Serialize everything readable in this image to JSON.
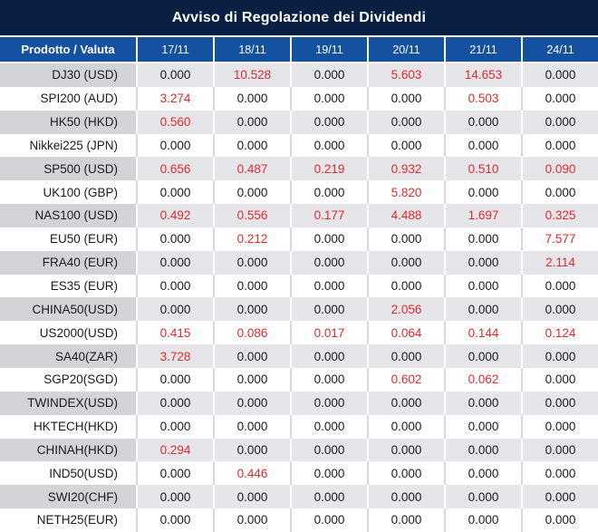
{
  "title": "Avviso di Regolazione dei Dividendi",
  "columns": [
    "Prodotto / Valuta",
    "17/11",
    "18/11",
    "19/11",
    "20/11",
    "21/11",
    "24/11"
  ],
  "rows": [
    {
      "product": "DJ30 (USD)",
      "values": [
        "0.000",
        "10.528",
        "0.000",
        "5.603",
        "14.653",
        "0.000"
      ],
      "red": [
        false,
        true,
        false,
        true,
        true,
        false
      ]
    },
    {
      "product": "SPI200 (AUD)",
      "values": [
        "3.274",
        "0.000",
        "0.000",
        "0.000",
        "0.503",
        "0.000"
      ],
      "red": [
        true,
        false,
        false,
        false,
        true,
        false
      ]
    },
    {
      "product": "HK50 (HKD)",
      "values": [
        "0.560",
        "0.000",
        "0.000",
        "0.000",
        "0.000",
        "0.000"
      ],
      "red": [
        true,
        false,
        false,
        false,
        false,
        false
      ]
    },
    {
      "product": "Nikkei225 (JPN)",
      "values": [
        "0.000",
        "0.000",
        "0.000",
        "0.000",
        "0.000",
        "0.000"
      ],
      "red": [
        false,
        false,
        false,
        false,
        false,
        false
      ]
    },
    {
      "product": "SP500 (USD)",
      "values": [
        "0.656",
        "0.487",
        "0.219",
        "0.932",
        "0.510",
        "0.090"
      ],
      "red": [
        true,
        true,
        true,
        true,
        true,
        true
      ]
    },
    {
      "product": "UK100 (GBP)",
      "values": [
        "0.000",
        "0.000",
        "0.000",
        "5.820",
        "0.000",
        "0.000"
      ],
      "red": [
        false,
        false,
        false,
        true,
        false,
        false
      ]
    },
    {
      "product": "NAS100 (USD)",
      "values": [
        "0.492",
        "0.556",
        "0.177",
        "4.488",
        "1.697",
        "0.325"
      ],
      "red": [
        true,
        true,
        true,
        true,
        true,
        true
      ]
    },
    {
      "product": "EU50 (EUR)",
      "values": [
        "0.000",
        "0.212",
        "0.000",
        "0.000",
        "0.000",
        "7.577"
      ],
      "red": [
        false,
        true,
        false,
        false,
        false,
        true
      ]
    },
    {
      "product": "FRA40 (EUR)",
      "values": [
        "0.000",
        "0.000",
        "0.000",
        "0.000",
        "0.000",
        "2.114"
      ],
      "red": [
        false,
        false,
        false,
        false,
        false,
        true
      ]
    },
    {
      "product": "ES35 (EUR)",
      "values": [
        "0.000",
        "0.000",
        "0.000",
        "0.000",
        "0.000",
        "0.000"
      ],
      "red": [
        false,
        false,
        false,
        false,
        false,
        false
      ]
    },
    {
      "product": "CHINA50(USD)",
      "values": [
        "0.000",
        "0.000",
        "0.000",
        "2.056",
        "0.000",
        "0.000"
      ],
      "red": [
        false,
        false,
        false,
        true,
        false,
        false
      ]
    },
    {
      "product": "US2000(USD)",
      "values": [
        "0.415",
        "0.086",
        "0.017",
        "0.064",
        "0.144",
        "0.124"
      ],
      "red": [
        true,
        true,
        true,
        true,
        true,
        true
      ]
    },
    {
      "product": "SA40(ZAR)",
      "values": [
        "3.728",
        "0.000",
        "0.000",
        "0.000",
        "0.000",
        "0.000"
      ],
      "red": [
        true,
        false,
        false,
        false,
        false,
        false
      ]
    },
    {
      "product": "SGP20(SGD)",
      "values": [
        "0.000",
        "0.000",
        "0.000",
        "0.602",
        "0.062",
        "0.000"
      ],
      "red": [
        false,
        false,
        false,
        true,
        true,
        false
      ]
    },
    {
      "product": "TWINDEX(USD)",
      "values": [
        "0.000",
        "0.000",
        "0.000",
        "0.000",
        "0.000",
        "0.000"
      ],
      "red": [
        false,
        false,
        false,
        false,
        false,
        false
      ]
    },
    {
      "product": "HKTECH(HKD)",
      "values": [
        "0.000",
        "0.000",
        "0.000",
        "0.000",
        "0.000",
        "0.000"
      ],
      "red": [
        false,
        false,
        false,
        false,
        false,
        false
      ]
    },
    {
      "product": "CHINAH(HKD)",
      "values": [
        "0.294",
        "0.000",
        "0.000",
        "0.000",
        "0.000",
        "0.000"
      ],
      "red": [
        true,
        false,
        false,
        false,
        false,
        false
      ]
    },
    {
      "product": "IND50(USD)",
      "values": [
        "0.000",
        "0.446",
        "0.000",
        "0.000",
        "0.000",
        "0.000"
      ],
      "red": [
        false,
        true,
        false,
        false,
        false,
        false
      ]
    },
    {
      "product": "SWI20(CHF)",
      "values": [
        "0.000",
        "0.000",
        "0.000",
        "0.000",
        "0.000",
        "0.000"
      ],
      "red": [
        false,
        false,
        false,
        false,
        false,
        false
      ]
    },
    {
      "product": "NETH25(EUR)",
      "values": [
        "0.000",
        "0.000",
        "0.000",
        "0.000",
        "0.000",
        "0.000"
      ],
      "red": [
        false,
        false,
        false,
        false,
        false,
        false
      ]
    }
  ],
  "colors": {
    "title_bg": "#0a2043",
    "header_bg": "#14519f",
    "alt_row_product_bg": "#d4d3d8",
    "alt_row_value_bg": "#e6e5ea",
    "red_text": "#e02b2b",
    "value_text": "#1b1b1b",
    "white_row_divider": "#d9d9d9"
  }
}
